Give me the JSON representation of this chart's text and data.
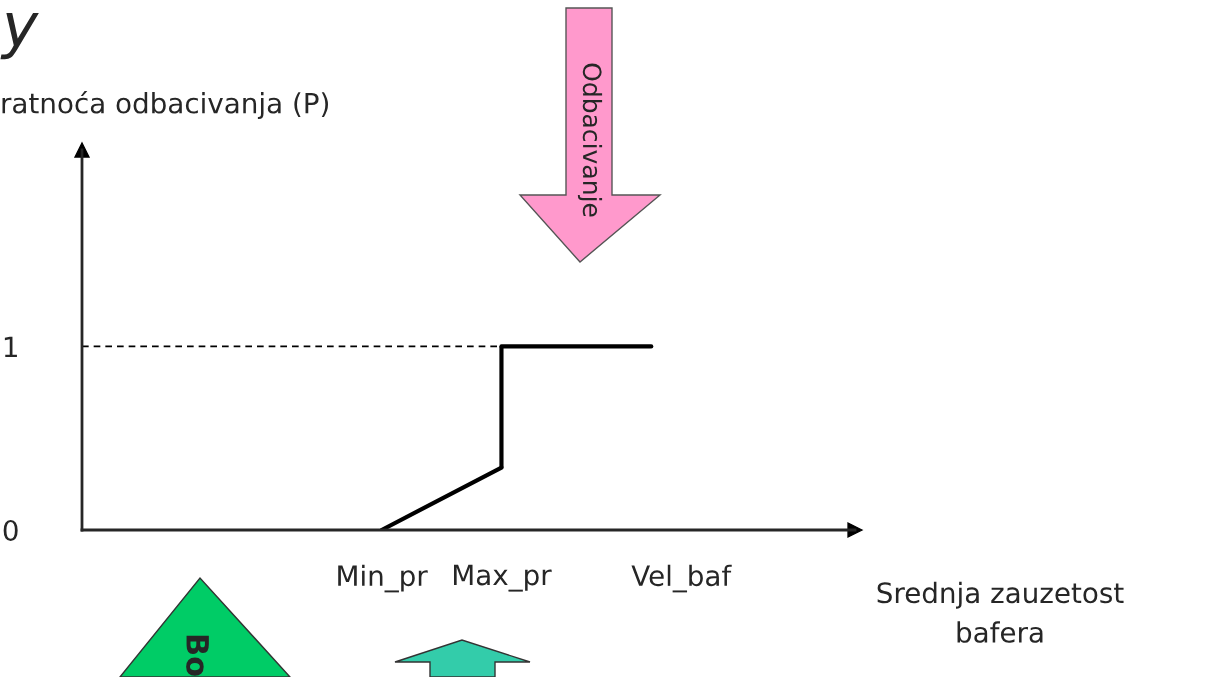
{
  "chart_data": {
    "type": "line",
    "title": "y",
    "ylabel": "ratnoća odbacivanja (P)",
    "xlabel": "Srednja zauzetost\nbafera",
    "ylim": [
      0,
      2.07
    ],
    "yticks": [
      0,
      1
    ],
    "grid": false,
    "categories": [
      null,
      null,
      null,
      null,
      null,
      null,
      null,
      null,
      null,
      null,
      "Min_pr",
      null,
      null,
      null,
      "Max_pr",
      null,
      null,
      null,
      null,
      null,
      "Vel_baf",
      null,
      null,
      null,
      null,
      null
    ],
    "series": [
      {
        "values": [
          null,
          null,
          null,
          null,
          null,
          null,
          null,
          null,
          null,
          null,
          0,
          null,
          null,
          null,
          0.34,
          null,
          null,
          null,
          null,
          null,
          null,
          null,
          null,
          null,
          null,
          null
        ],
        "color": "#000000",
        "line_style": "solid"
      },
      {
        "values": [
          null,
          null,
          null,
          null,
          null,
          null,
          null,
          null,
          null,
          null,
          null,
          null,
          null,
          null,
          1,
          1,
          1,
          1,
          1,
          1,
          null,
          null,
          null,
          null,
          null,
          null
        ],
        "errors": [
          null,
          null,
          null,
          null,
          null,
          null,
          null,
          null,
          null,
          null,
          null,
          null,
          null,
          null,
          [
            0.34,
            1
          ],
          null,
          null,
          null,
          null,
          null,
          null,
          null,
          null,
          null,
          null,
          null
        ],
        "color": "#000000",
        "line_style": "solid"
      },
      {
        "values": [
          1,
          1,
          1,
          1,
          1,
          1,
          1,
          1,
          1,
          1,
          1,
          1,
          1,
          1,
          1,
          null,
          null,
          null,
          null,
          null,
          null,
          null,
          null,
          null,
          null,
          null
        ],
        "color": "#000000",
        "line_style": "dashed"
      }
    ],
    "annotations": [
      "Odbacivanje",
      "Bo"
    ]
  }
}
